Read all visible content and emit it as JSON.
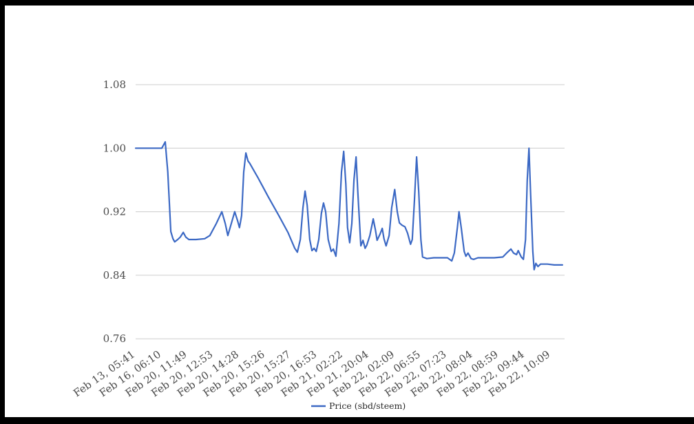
{
  "page": {
    "background": "#ffffff",
    "frame_color": "#000000"
  },
  "chart_data": {
    "type": "line",
    "title": "",
    "series_name": "Price (sbd/steem)",
    "line_color": "#3b68c4",
    "grid_color": "#cccccc",
    "axis_text_color": "#4a4a4a",
    "legend_text_color": "#2b2b2b",
    "legend_position": "bottom-center",
    "grid": "horizontal-only",
    "y_ticks": [
      1.08,
      1.0,
      0.92,
      0.84,
      0.76
    ],
    "y_tick_labels": [
      "1.08",
      "1.00",
      "0.92",
      "0.84",
      "0.76"
    ],
    "y_range": [
      0.76,
      1.08
    ],
    "x_tick_labels": [
      "Feb 13, 05:41",
      "Feb 16, 06:10",
      "Feb 20, 11:49",
      "Feb 20, 12:53",
      "Feb 20, 14:28",
      "Feb 20, 15:26",
      "Feb 20, 15:27",
      "Feb 20, 16:53",
      "Feb 21, 02:22",
      "Feb 21, 20:04",
      "Feb 22, 02:09",
      "Feb 22, 06:55",
      "Feb 22, 07:23",
      "Feb 22, 08:04",
      "Feb 22, 08:59",
      "Feb 22, 09:44",
      "Feb 22, 10:09"
    ],
    "points_format": "[x_fraction_along_axis, price_sbd_per_steem]",
    "points": [
      [
        0.0,
        1.0
      ],
      [
        0.061,
        1.0
      ],
      [
        0.069,
        1.008
      ],
      [
        0.075,
        0.97
      ],
      [
        0.082,
        0.895
      ],
      [
        0.087,
        0.886
      ],
      [
        0.091,
        0.882
      ],
      [
        0.098,
        0.885
      ],
      [
        0.104,
        0.888
      ],
      [
        0.111,
        0.894
      ],
      [
        0.117,
        0.888
      ],
      [
        0.124,
        0.885
      ],
      [
        0.141,
        0.885
      ],
      [
        0.161,
        0.886
      ],
      [
        0.173,
        0.89
      ],
      [
        0.188,
        0.905
      ],
      [
        0.201,
        0.92
      ],
      [
        0.209,
        0.905
      ],
      [
        0.215,
        0.89
      ],
      [
        0.223,
        0.905
      ],
      [
        0.231,
        0.92
      ],
      [
        0.238,
        0.908
      ],
      [
        0.242,
        0.9
      ],
      [
        0.247,
        0.915
      ],
      [
        0.252,
        0.97
      ],
      [
        0.257,
        0.994
      ],
      [
        0.262,
        0.984
      ],
      [
        0.266,
        0.981
      ],
      [
        0.286,
        0.962
      ],
      [
        0.31,
        0.938
      ],
      [
        0.334,
        0.915
      ],
      [
        0.355,
        0.894
      ],
      [
        0.371,
        0.874
      ],
      [
        0.377,
        0.869
      ],
      [
        0.384,
        0.885
      ],
      [
        0.39,
        0.925
      ],
      [
        0.395,
        0.946
      ],
      [
        0.4,
        0.928
      ],
      [
        0.406,
        0.885
      ],
      [
        0.411,
        0.871
      ],
      [
        0.416,
        0.874
      ],
      [
        0.421,
        0.87
      ],
      [
        0.427,
        0.885
      ],
      [
        0.433,
        0.918
      ],
      [
        0.438,
        0.931
      ],
      [
        0.443,
        0.92
      ],
      [
        0.449,
        0.885
      ],
      [
        0.456,
        0.87
      ],
      [
        0.461,
        0.873
      ],
      [
        0.467,
        0.864
      ],
      [
        0.474,
        0.905
      ],
      [
        0.48,
        0.97
      ],
      [
        0.485,
        0.996
      ],
      [
        0.49,
        0.955
      ],
      [
        0.494,
        0.9
      ],
      [
        0.499,
        0.881
      ],
      [
        0.504,
        0.905
      ],
      [
        0.509,
        0.96
      ],
      [
        0.514,
        0.989
      ],
      [
        0.518,
        0.945
      ],
      [
        0.525,
        0.877
      ],
      [
        0.53,
        0.884
      ],
      [
        0.535,
        0.874
      ],
      [
        0.539,
        0.878
      ],
      [
        0.546,
        0.89
      ],
      [
        0.554,
        0.911
      ],
      [
        0.559,
        0.897
      ],
      [
        0.563,
        0.884
      ],
      [
        0.57,
        0.892
      ],
      [
        0.575,
        0.899
      ],
      [
        0.579,
        0.886
      ],
      [
        0.584,
        0.877
      ],
      [
        0.591,
        0.89
      ],
      [
        0.597,
        0.925
      ],
      [
        0.604,
        0.948
      ],
      [
        0.61,
        0.92
      ],
      [
        0.615,
        0.906
      ],
      [
        0.621,
        0.903
      ],
      [
        0.628,
        0.901
      ],
      [
        0.634,
        0.893
      ],
      [
        0.641,
        0.879
      ],
      [
        0.645,
        0.885
      ],
      [
        0.65,
        0.935
      ],
      [
        0.655,
        0.989
      ],
      [
        0.66,
        0.945
      ],
      [
        0.665,
        0.885
      ],
      [
        0.669,
        0.863
      ],
      [
        0.679,
        0.861
      ],
      [
        0.695,
        0.862
      ],
      [
        0.711,
        0.862
      ],
      [
        0.727,
        0.862
      ],
      [
        0.737,
        0.858
      ],
      [
        0.743,
        0.868
      ],
      [
        0.75,
        0.9
      ],
      [
        0.754,
        0.92
      ],
      [
        0.759,
        0.9
      ],
      [
        0.766,
        0.87
      ],
      [
        0.77,
        0.864
      ],
      [
        0.775,
        0.868
      ],
      [
        0.782,
        0.861
      ],
      [
        0.788,
        0.86
      ],
      [
        0.798,
        0.862
      ],
      [
        0.815,
        0.862
      ],
      [
        0.836,
        0.862
      ],
      [
        0.856,
        0.863
      ],
      [
        0.865,
        0.868
      ],
      [
        0.875,
        0.873
      ],
      [
        0.881,
        0.868
      ],
      [
        0.888,
        0.866
      ],
      [
        0.892,
        0.871
      ],
      [
        0.899,
        0.863
      ],
      [
        0.904,
        0.86
      ],
      [
        0.909,
        0.885
      ],
      [
        0.913,
        0.96
      ],
      [
        0.917,
        1.0
      ],
      [
        0.921,
        0.94
      ],
      [
        0.926,
        0.87
      ],
      [
        0.929,
        0.847
      ],
      [
        0.933,
        0.855
      ],
      [
        0.938,
        0.851
      ],
      [
        0.944,
        0.854
      ],
      [
        0.96,
        0.854
      ],
      [
        0.976,
        0.853
      ],
      [
        0.995,
        0.853
      ]
    ]
  }
}
